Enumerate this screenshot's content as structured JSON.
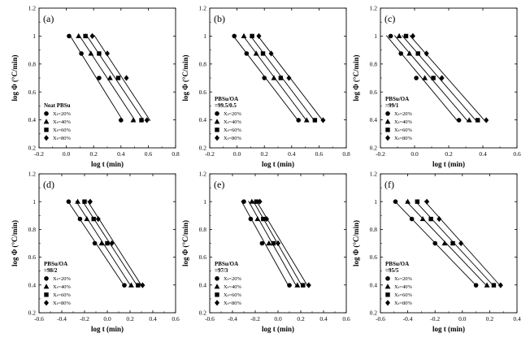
{
  "chart_data": [
    {
      "type": "line",
      "panel_label": "(a)",
      "xlabel": "log t (min)",
      "ylabel": "log Φ (°C/min)",
      "xlim": [
        -0.2,
        0.8
      ],
      "xticks": [
        "-0.2",
        "0.0",
        "0.2",
        "0.4",
        "0.6",
        "0.8"
      ],
      "ylim": [
        0.2,
        1.2
      ],
      "yticks": [
        "0.2",
        "0.4",
        "0.6",
        "0.8",
        "1",
        "1.2"
      ],
      "legend_title": [
        "Neat PBSu"
      ],
      "series": [
        {
          "name": "Xₜ=20%",
          "marker": "circle",
          "x": [
            0.02,
            0.11,
            0.24,
            0.4
          ],
          "y": [
            1.0,
            0.875,
            0.7,
            0.398
          ]
        },
        {
          "name": "Xₜ=40%",
          "marker": "triangle",
          "x": [
            0.09,
            0.18,
            0.32,
            0.49
          ],
          "y": [
            1.0,
            0.875,
            0.7,
            0.398
          ]
        },
        {
          "name": "Xₜ=60%",
          "marker": "square",
          "x": [
            0.14,
            0.24,
            0.38,
            0.55
          ],
          "y": [
            1.0,
            0.875,
            0.7,
            0.398
          ]
        },
        {
          "name": "Xₜ=80%",
          "marker": "diamond",
          "x": [
            0.19,
            0.3,
            0.44,
            0.59
          ],
          "y": [
            1.0,
            0.875,
            0.7,
            0.398
          ]
        }
      ]
    },
    {
      "type": "line",
      "panel_label": "(b)",
      "xlabel": "log t (min)",
      "ylabel": "log Φ (°C/min)",
      "xlim": [
        -0.2,
        0.8
      ],
      "xticks": [
        "-0.2",
        "0.0",
        "0.2",
        "0.4",
        "0.6",
        "0.8"
      ],
      "ylim": [
        0.2,
        1.2
      ],
      "yticks": [
        "0.2",
        "0.4",
        "0.6",
        "0.8",
        "1",
        "1.2"
      ],
      "legend_title": [
        "PBSu/OA",
        "=99.5/0.5"
      ],
      "series": [
        {
          "name": "Xₜ=20%",
          "marker": "circle",
          "x": [
            -0.02,
            0.07,
            0.2,
            0.45
          ],
          "y": [
            1.0,
            0.875,
            0.7,
            0.398
          ]
        },
        {
          "name": "Xₜ=40%",
          "marker": "triangle",
          "x": [
            0.05,
            0.14,
            0.27,
            0.51
          ],
          "y": [
            1.0,
            0.875,
            0.7,
            0.398
          ]
        },
        {
          "name": "Xₜ=60%",
          "marker": "square",
          "x": [
            0.11,
            0.19,
            0.32,
            0.57
          ],
          "y": [
            1.0,
            0.875,
            0.7,
            0.398
          ]
        },
        {
          "name": "Xₜ=80%",
          "marker": "diamond",
          "x": [
            0.16,
            0.25,
            0.38,
            0.63
          ],
          "y": [
            1.0,
            0.875,
            0.7,
            0.398
          ]
        }
      ]
    },
    {
      "type": "line",
      "panel_label": "(c)",
      "xlabel": "log t (min)",
      "ylabel": "log Φ (°C/min)",
      "xlim": [
        -0.2,
        0.6
      ],
      "xticks": [
        "-0.2",
        "0.0",
        "0.2",
        "0.4",
        "0.6"
      ],
      "ylim": [
        0.2,
        1.2
      ],
      "yticks": [
        "0.2",
        "0.4",
        "0.6",
        "0.8",
        "1",
        "1.2"
      ],
      "legend_title": [
        "PBSu/OA",
        "=99/1"
      ],
      "series": [
        {
          "name": "Xₜ=20%",
          "marker": "circle",
          "x": [
            -0.14,
            -0.08,
            0.01,
            0.26
          ],
          "y": [
            1.0,
            0.875,
            0.7,
            0.398
          ]
        },
        {
          "name": "Xₜ=40%",
          "marker": "triangle",
          "x": [
            -0.09,
            -0.03,
            0.06,
            0.32
          ],
          "y": [
            1.0,
            0.875,
            0.7,
            0.398
          ]
        },
        {
          "name": "Xₜ=60%",
          "marker": "square",
          "x": [
            -0.05,
            0.02,
            0.11,
            0.37
          ],
          "y": [
            1.0,
            0.875,
            0.7,
            0.398
          ]
        },
        {
          "name": "Xₜ=80%",
          "marker": "diamond",
          "x": [
            -0.01,
            0.07,
            0.16,
            0.42
          ],
          "y": [
            1.0,
            0.875,
            0.7,
            0.398
          ]
        }
      ]
    },
    {
      "type": "line",
      "panel_label": "(d)",
      "xlabel": "log t (min)",
      "ylabel": "log Φ (°C/min)",
      "xlim": [
        -0.6,
        0.6
      ],
      "xticks": [
        "-0.6",
        "-0.4",
        "-0.2",
        "0.0",
        "0.2",
        "0.4",
        "0.6"
      ],
      "ylim": [
        0.2,
        1.2
      ],
      "yticks": [
        "0.2",
        "0.4",
        "0.6",
        "0.8",
        "1",
        "1.2"
      ],
      "legend_title": [
        "PBSu/OA",
        "=98/2"
      ],
      "series": [
        {
          "name": "Xₜ=20%",
          "marker": "circle",
          "x": [
            -0.34,
            -0.24,
            -0.11,
            0.15
          ],
          "y": [
            1.0,
            0.875,
            0.7,
            0.398
          ]
        },
        {
          "name": "Xₜ=40%",
          "marker": "triangle",
          "x": [
            -0.26,
            -0.18,
            -0.05,
            0.21
          ],
          "y": [
            1.0,
            0.875,
            0.7,
            0.398
          ]
        },
        {
          "name": "Xₜ=60%",
          "marker": "square",
          "x": [
            -0.2,
            -0.12,
            0.0,
            0.27
          ],
          "y": [
            1.0,
            0.875,
            0.7,
            0.398
          ]
        },
        {
          "name": "Xₜ=80%",
          "marker": "diamond",
          "x": [
            -0.15,
            -0.08,
            0.04,
            0.31
          ],
          "y": [
            1.0,
            0.875,
            0.7,
            0.398
          ]
        }
      ]
    },
    {
      "type": "line",
      "panel_label": "(e)",
      "xlabel": "log t (min)",
      "ylabel": "log Φ (°C/min)",
      "xlim": [
        -0.6,
        0.6
      ],
      "xticks": [
        "-0.6",
        "-0.4",
        "-0.2",
        "0.0",
        "0.2",
        "0.4",
        "0.6"
      ],
      "ylim": [
        0.2,
        1.2
      ],
      "yticks": [
        "0.2",
        "0.4",
        "0.6",
        "0.8",
        "1",
        "1.2"
      ],
      "legend_title": [
        "PBSu/OA",
        "=97/3"
      ],
      "series": [
        {
          "name": "Xₜ=20%",
          "marker": "circle",
          "x": [
            -0.3,
            -0.24,
            -0.14,
            0.1
          ],
          "y": [
            1.0,
            0.875,
            0.7,
            0.398
          ]
        },
        {
          "name": "Xₜ=40%",
          "marker": "triangle",
          "x": [
            -0.23,
            -0.18,
            -0.08,
            0.17
          ],
          "y": [
            1.0,
            0.875,
            0.7,
            0.398
          ]
        },
        {
          "name": "Xₜ=60%",
          "marker": "square",
          "x": [
            -0.19,
            -0.13,
            -0.04,
            0.22
          ],
          "y": [
            1.0,
            0.875,
            0.7,
            0.398
          ]
        },
        {
          "name": "Xₜ=80%",
          "marker": "diamond",
          "x": [
            -0.16,
            -0.1,
            0.0,
            0.27
          ],
          "y": [
            1.0,
            0.875,
            0.7,
            0.398
          ]
        }
      ]
    },
    {
      "type": "line",
      "panel_label": "(f)",
      "xlabel": "log t (min)",
      "ylabel": "log Φ (°C/min)",
      "xlim": [
        -0.6,
        0.4
      ],
      "xticks": [
        "-0.6",
        "-0.4",
        "-0.2",
        "0.0",
        "0.2",
        "0.4"
      ],
      "ylim": [
        0.2,
        1.2
      ],
      "yticks": [
        "0.2",
        "0.4",
        "0.6",
        "0.8",
        "1",
        "1.2"
      ],
      "legend_title": [
        "PBSu/OA",
        "=95/5"
      ],
      "series": [
        {
          "name": "Xₜ=20%",
          "marker": "circle",
          "x": [
            -0.49,
            -0.37,
            -0.2,
            0.1
          ],
          "y": [
            1.0,
            0.875,
            0.7,
            0.398
          ]
        },
        {
          "name": "Xₜ=40%",
          "marker": "triangle",
          "x": [
            -0.4,
            -0.29,
            -0.13,
            0.18
          ],
          "y": [
            1.0,
            0.875,
            0.7,
            0.398
          ]
        },
        {
          "name": "Xₜ=60%",
          "marker": "square",
          "x": [
            -0.33,
            -0.23,
            -0.07,
            0.23
          ],
          "y": [
            1.0,
            0.875,
            0.7,
            0.398
          ]
        },
        {
          "name": "Xₜ=80%",
          "marker": "diamond",
          "x": [
            -0.26,
            -0.17,
            -0.01,
            0.28
          ],
          "y": [
            1.0,
            0.875,
            0.7,
            0.398
          ]
        }
      ]
    }
  ]
}
